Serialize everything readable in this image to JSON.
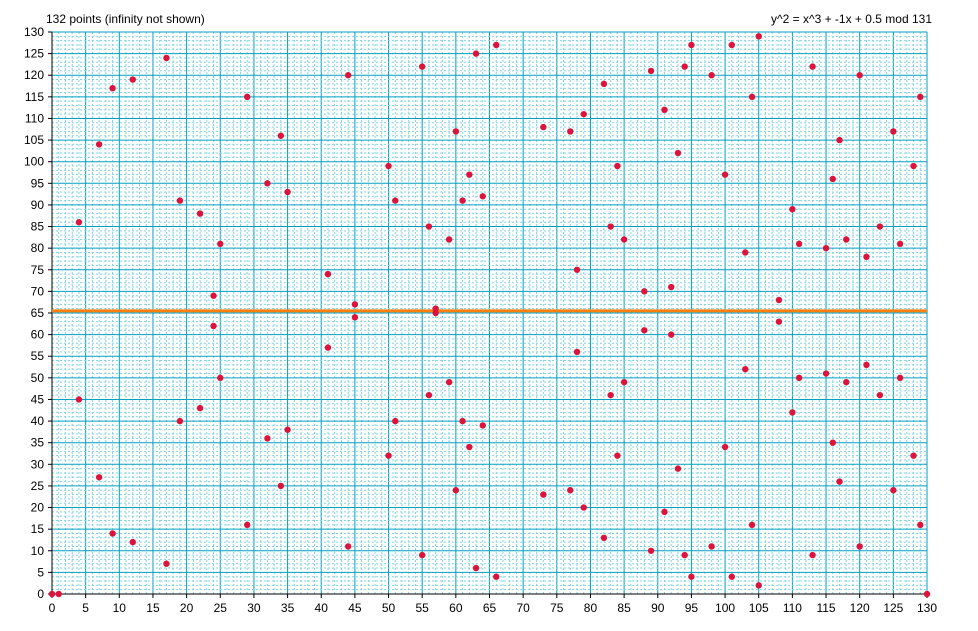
{
  "header": {
    "point_count_text": "132 points (infinity not shown)",
    "equation_text": "y^2 = x^3 + -1x + 0.5 mod 131"
  },
  "colors": {
    "grid_minor": "#7fd7e6",
    "grid_major": "#00a0c0",
    "axis": "#000000",
    "point": "#dc143c",
    "line": "#ff7f0e"
  },
  "chart_data": {
    "type": "scatter",
    "xlim": [
      0,
      130
    ],
    "ylim": [
      0,
      130
    ],
    "x_ticks": [
      0,
      5,
      10,
      15,
      20,
      25,
      30,
      35,
      40,
      45,
      50,
      55,
      60,
      65,
      70,
      75,
      80,
      85,
      90,
      95,
      100,
      105,
      110,
      115,
      120,
      125,
      130
    ],
    "y_ticks": [
      0,
      5,
      10,
      15,
      20,
      25,
      30,
      35,
      40,
      45,
      50,
      55,
      60,
      65,
      70,
      75,
      80,
      85,
      90,
      95,
      100,
      105,
      110,
      115,
      120,
      125,
      130
    ],
    "grid": true,
    "horizontal_line": {
      "y": 65.5
    },
    "points": [
      [
        0,
        0
      ],
      [
        1,
        0
      ],
      [
        4,
        45
      ],
      [
        4,
        86
      ],
      [
        7,
        27
      ],
      [
        7,
        104
      ],
      [
        9,
        14
      ],
      [
        9,
        117
      ],
      [
        12,
        12
      ],
      [
        12,
        119
      ],
      [
        17,
        7
      ],
      [
        17,
        124
      ],
      [
        19,
        40
      ],
      [
        19,
        91
      ],
      [
        22,
        43
      ],
      [
        22,
        88
      ],
      [
        24,
        62
      ],
      [
        24,
        69
      ],
      [
        25,
        50
      ],
      [
        25,
        81
      ],
      [
        29,
        16
      ],
      [
        29,
        115
      ],
      [
        32,
        36
      ],
      [
        32,
        95
      ],
      [
        34,
        25
      ],
      [
        34,
        106
      ],
      [
        35,
        38
      ],
      [
        35,
        93
      ],
      [
        41,
        57
      ],
      [
        41,
        74
      ],
      [
        44,
        11
      ],
      [
        44,
        120
      ],
      [
        45,
        64
      ],
      [
        45,
        67
      ],
      [
        50,
        32
      ],
      [
        50,
        99
      ],
      [
        51,
        40
      ],
      [
        51,
        91
      ],
      [
        55,
        9
      ],
      [
        55,
        122
      ],
      [
        56,
        46
      ],
      [
        56,
        85
      ],
      [
        57,
        65
      ],
      [
        57,
        66
      ],
      [
        59,
        49
      ],
      [
        59,
        82
      ],
      [
        60,
        24
      ],
      [
        60,
        107
      ],
      [
        61,
        40
      ],
      [
        61,
        91
      ],
      [
        62,
        34
      ],
      [
        62,
        97
      ],
      [
        63,
        6
      ],
      [
        63,
        125
      ],
      [
        64,
        39
      ],
      [
        64,
        92
      ],
      [
        66,
        4
      ],
      [
        66,
        127
      ],
      [
        73,
        23
      ],
      [
        73,
        108
      ],
      [
        77,
        24
      ],
      [
        77,
        107
      ],
      [
        78,
        56
      ],
      [
        78,
        75
      ],
      [
        79,
        20
      ],
      [
        79,
        111
      ],
      [
        82,
        13
      ],
      [
        82,
        118
      ],
      [
        83,
        46
      ],
      [
        83,
        85
      ],
      [
        84,
        32
      ],
      [
        84,
        99
      ],
      [
        85,
        49
      ],
      [
        85,
        82
      ],
      [
        88,
        61
      ],
      [
        88,
        70
      ],
      [
        89,
        10
      ],
      [
        89,
        121
      ],
      [
        91,
        19
      ],
      [
        91,
        112
      ],
      [
        92,
        60
      ],
      [
        92,
        71
      ],
      [
        93,
        29
      ],
      [
        93,
        102
      ],
      [
        94,
        9
      ],
      [
        94,
        122
      ],
      [
        95,
        4
      ],
      [
        95,
        127
      ],
      [
        98,
        11
      ],
      [
        98,
        120
      ],
      [
        100,
        34
      ],
      [
        100,
        97
      ],
      [
        101,
        4
      ],
      [
        101,
        127
      ],
      [
        103,
        52
      ],
      [
        103,
        79
      ],
      [
        104,
        16
      ],
      [
        104,
        115
      ],
      [
        105,
        2
      ],
      [
        105,
        129
      ],
      [
        108,
        63
      ],
      [
        108,
        68
      ],
      [
        110,
        42
      ],
      [
        110,
        89
      ],
      [
        111,
        50
      ],
      [
        111,
        81
      ],
      [
        113,
        9
      ],
      [
        113,
        122
      ],
      [
        115,
        51
      ],
      [
        115,
        80
      ],
      [
        116,
        35
      ],
      [
        116,
        96
      ],
      [
        117,
        26
      ],
      [
        117,
        105
      ],
      [
        118,
        49
      ],
      [
        118,
        82
      ],
      [
        120,
        11
      ],
      [
        120,
        120
      ],
      [
        121,
        53
      ],
      [
        121,
        78
      ],
      [
        123,
        46
      ],
      [
        123,
        85
      ],
      [
        125,
        24
      ],
      [
        125,
        107
      ],
      [
        126,
        50
      ],
      [
        126,
        81
      ],
      [
        128,
        32
      ],
      [
        128,
        99
      ],
      [
        129,
        16
      ],
      [
        129,
        115
      ],
      [
        130,
        0
      ]
    ]
  }
}
